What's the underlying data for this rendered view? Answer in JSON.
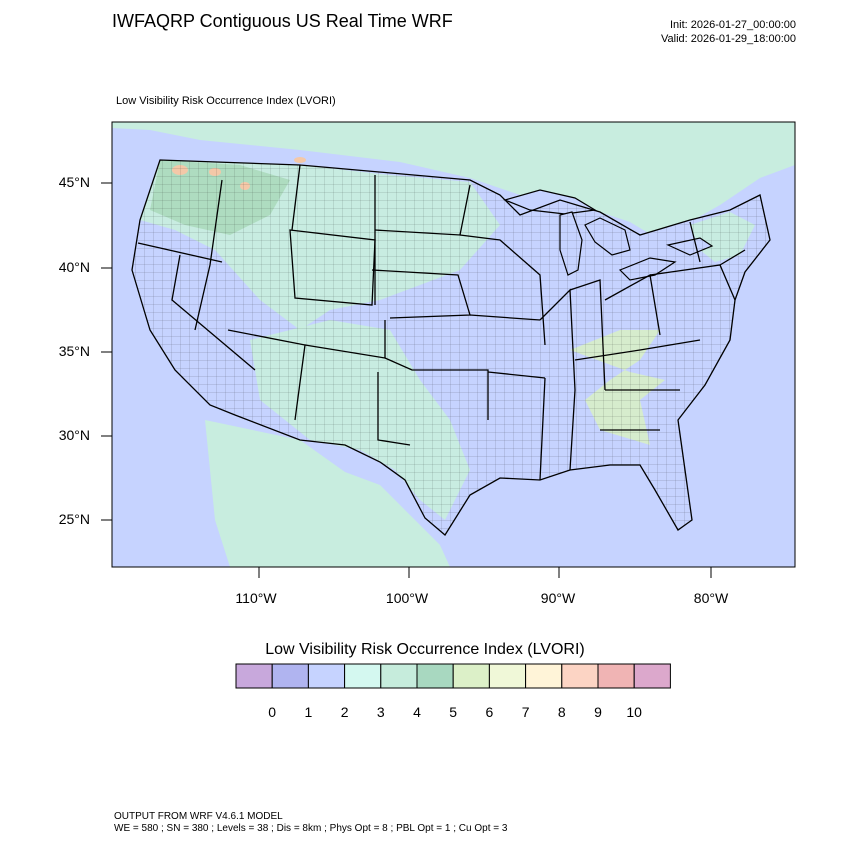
{
  "header": {
    "title": "IWFAQRP Contiguous US Real Time WRF",
    "init": "Init: 2026-01-27_00:00:00",
    "valid": "Valid: 2026-01-29_18:00:00"
  },
  "map": {
    "field_label": "Low Visibility Risk Occurrence Index   (LVORI)",
    "lat_labels": [
      "45°N",
      "40°N",
      "35°N",
      "30°N",
      "25°N"
    ],
    "lon_labels": [
      "110°W",
      "100°W",
      "90°W",
      "80°W"
    ],
    "colors": {
      "ocean": "#c6d3ff",
      "land_low": "#c6d3ff",
      "land_mid": "#c8f0dc",
      "land_green": "#a8d8b8",
      "land_high": "#d8f0c4",
      "mountain": "#f4c8a8"
    }
  },
  "colorbar": {
    "title": "Low Visibility Risk Occurrence Index  (LVORI)",
    "labels": [
      "0",
      "1",
      "2",
      "3",
      "4",
      "5",
      "6",
      "7",
      "8",
      "9",
      "10"
    ],
    "colors": [
      "#c8a8dc",
      "#b0b4f0",
      "#c6d3ff",
      "#d4f8f0",
      "#c6ecdc",
      "#a8d8c0",
      "#dcf0c8",
      "#f0f8d8",
      "#fff4d8",
      "#fcd4c4",
      "#f0b4b4",
      "#dca8cc"
    ]
  },
  "footer": {
    "line1": "OUTPUT FROM WRF V4.6.1 MODEL",
    "line2": "WE = 580 ; SN = 380 ; Levels = 38 ; Dis = 8km ; Phys Opt = 8 ; PBL Opt = 1 ; Cu Opt = 3"
  }
}
